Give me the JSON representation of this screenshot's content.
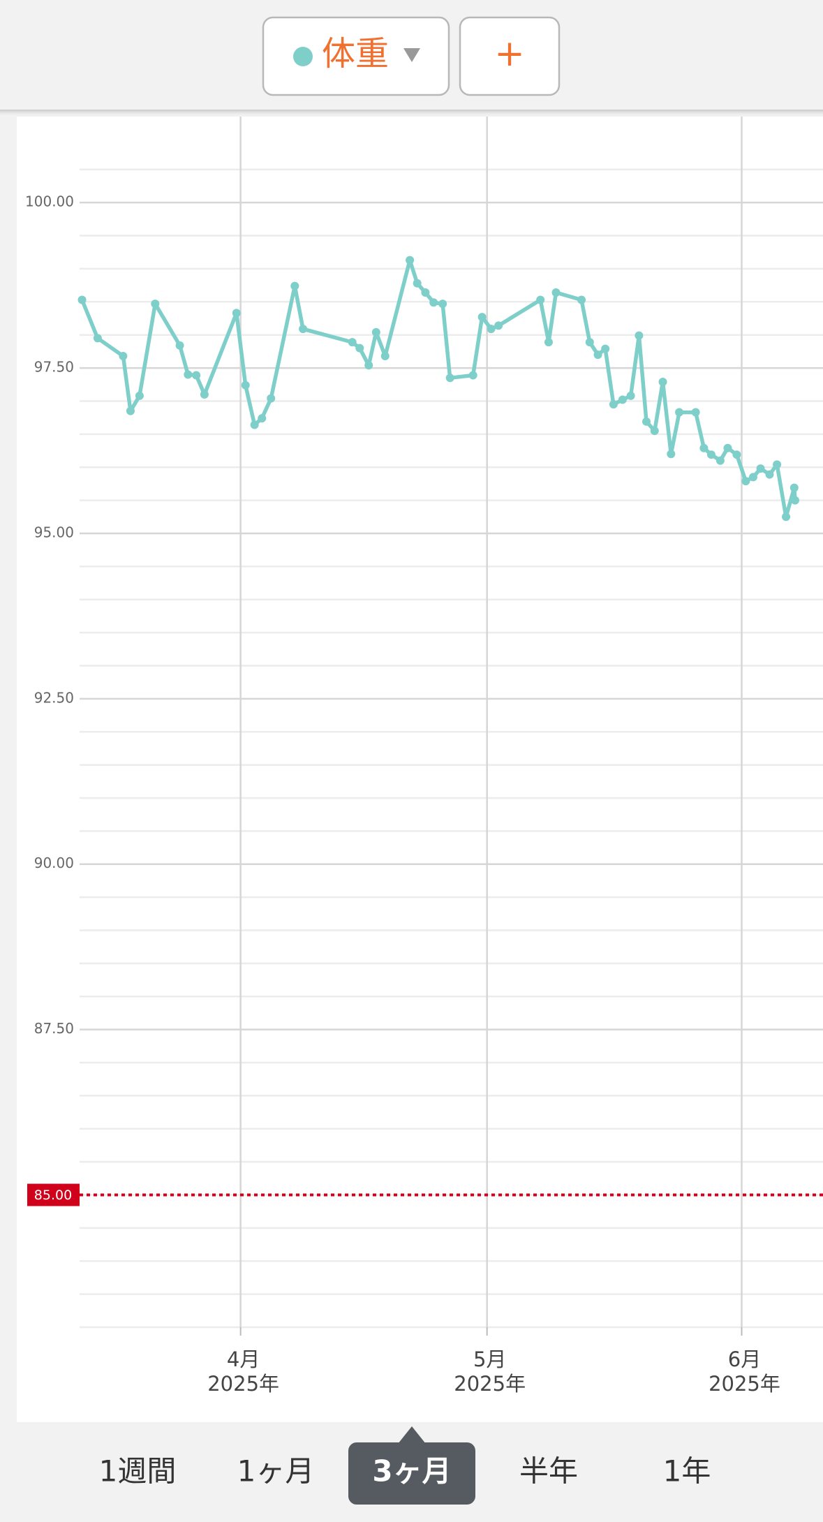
{
  "header": {
    "add_button": "+"
  },
  "chart_data": {
    "type": "line",
    "x": [
      71.7,
      73.6,
      76.7,
      77.6,
      78.7,
      80.6,
      83.6,
      84.6,
      85.6,
      86.6,
      90.5,
      91.6,
      92.7,
      93.6,
      94.7,
      97.6,
      98.6,
      104.6,
      105.5,
      106.6,
      107.5,
      108.6,
      111.6,
      112.5,
      113.5,
      114.5,
      115.6,
      116.5,
      119.3,
      120.4,
      121.5,
      122.4,
      127.5,
      128.5,
      129.4,
      132.5,
      133.5,
      134.5,
      135.4,
      136.4,
      137.5,
      138.5,
      139.5,
      140.4,
      141.4,
      142.4,
      143.4,
      144.4,
      146.4,
      147.4,
      148.3,
      149.4,
      150.3,
      151.4,
      152.5,
      153.4,
      154.3,
      155.4,
      156.3,
      157.4,
      158.4,
      158.5
    ],
    "series": [
      {
        "name": "体重",
        "color": "#7ecfca",
        "values": [
          98.53,
          97.95,
          97.68,
          96.85,
          97.08,
          98.47,
          97.84,
          97.4,
          97.39,
          97.1,
          98.33,
          97.24,
          96.64,
          96.74,
          97.04,
          98.74,
          98.09,
          97.89,
          97.8,
          97.54,
          98.04,
          97.68,
          99.13,
          98.78,
          98.64,
          98.49,
          98.47,
          97.35,
          97.39,
          98.27,
          98.09,
          98.14,
          98.53,
          97.89,
          98.64,
          98.53,
          97.89,
          97.7,
          97.79,
          96.95,
          97.02,
          97.08,
          97.99,
          96.69,
          96.55,
          97.29,
          96.2,
          96.83,
          96.83,
          96.29,
          96.19,
          96.1,
          96.29,
          96.19,
          95.79,
          95.85,
          95.98,
          95.89,
          96.04,
          95.25,
          95.69,
          95.5
        ]
      }
    ],
    "xlim": [
      71.4,
      161.9
    ],
    "ylim": [
      83,
      101.3
    ],
    "xticks": [
      {
        "value": 91,
        "label": [
          "4月",
          "2025年"
        ]
      },
      {
        "value": 121,
        "label": [
          "5月",
          "2025年"
        ]
      },
      {
        "value": 152,
        "label": [
          "6月",
          "2025年"
        ]
      }
    ],
    "yticks": [
      {
        "value": 87.5,
        "label": "87.50"
      },
      {
        "value": 90,
        "label": "90.00"
      },
      {
        "value": 92.5,
        "label": "92.50"
      },
      {
        "value": 95,
        "label": "95.00"
      },
      {
        "value": 97.5,
        "label": "97.50"
      },
      {
        "value": 100,
        "label": "100.00"
      }
    ],
    "minor_yticks": [
      83,
      83.5,
      84,
      84.5,
      85,
      85.5,
      86,
      86.5,
      87,
      88,
      88.5,
      89,
      89.5,
      90.5,
      91,
      91.5,
      92,
      93,
      93.5,
      94,
      94.5,
      95.5,
      96,
      96.5,
      97,
      98,
      98.5,
      99,
      99.5,
      100.5
    ],
    "grid": true,
    "target": {
      "value": 85,
      "label": "85.00",
      "color": "#d0021b"
    }
  },
  "tabs": {
    "items": [
      "1週間",
      "1ヶ月",
      "3ヶ月",
      "半年",
      "1年"
    ],
    "selected": 2
  }
}
